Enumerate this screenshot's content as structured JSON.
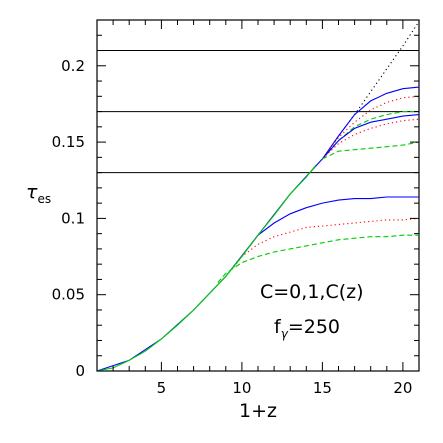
{
  "chart_data": {
    "type": "line",
    "xlabel": "1+z",
    "ylabel": "τ",
    "ylabel_sub": "es",
    "xlim": [
      1,
      21
    ],
    "ylim": [
      0,
      0.23
    ],
    "x_ticks": [
      5,
      10,
      15,
      20
    ],
    "x_tick_labels": [
      "5",
      "10",
      "15",
      "20"
    ],
    "y_ticks": [
      0,
      0.05,
      0.1,
      0.15,
      0.2
    ],
    "y_tick_labels": [
      "0",
      "0.05",
      "0.1",
      "0.15",
      "0.2"
    ],
    "grid": false,
    "annotations": [
      {
        "text": "C=0,1,C(z)"
      },
      {
        "text": "f",
        "sub": "γ",
        "suffix": "=250"
      }
    ],
    "hlines": [
      0.21,
      0.17,
      0.13
    ],
    "series": [
      {
        "style": "dotted",
        "color": "#000000",
        "x": [
          15.0,
          16,
          17,
          18,
          19,
          20,
          21
        ],
        "y": [
          0.139,
          0.154,
          0.168,
          0.183,
          0.198,
          0.213,
          0.229
        ]
      },
      {
        "style": "solid",
        "color": "#0000ff",
        "x": [
          1,
          3,
          5,
          7,
          9,
          11,
          13,
          15,
          16,
          17,
          18,
          19,
          20,
          21
        ],
        "y": [
          0,
          0.007,
          0.021,
          0.04,
          0.062,
          0.089,
          0.116,
          0.139,
          0.154,
          0.168,
          0.177,
          0.182,
          0.185,
          0.186
        ]
      },
      {
        "style": "dotted",
        "color": "#ff0000",
        "x": [
          15.0,
          16,
          17,
          18,
          19,
          20,
          21
        ],
        "y": [
          0.139,
          0.153,
          0.163,
          0.171,
          0.176,
          0.179,
          0.18
        ]
      },
      {
        "style": "dashed",
        "color": "#00cc00",
        "x": [
          15.0,
          16,
          17,
          18,
          19,
          20,
          21
        ],
        "y": [
          0.139,
          0.151,
          0.16,
          0.165,
          0.168,
          0.17,
          0.17
        ]
      },
      {
        "style": "solid",
        "color": "#0000ff",
        "x": [
          15.0,
          16,
          17,
          18,
          19,
          20,
          21
        ],
        "y": [
          0.139,
          0.151,
          0.159,
          0.163,
          0.165,
          0.167,
          0.168
        ]
      },
      {
        "style": "dotted",
        "color": "#ff0000",
        "x": [
          15.0,
          16,
          17,
          18,
          19,
          20,
          21
        ],
        "y": [
          0.139,
          0.149,
          0.155,
          0.159,
          0.162,
          0.164,
          0.165
        ]
      },
      {
        "style": "dashed",
        "color": "#00cc00",
        "x": [
          15.0,
          16,
          17,
          18,
          19,
          20,
          21
        ],
        "y": [
          0.139,
          0.144,
          0.145,
          0.146,
          0.147,
          0.148,
          0.15
        ]
      },
      {
        "style": "solid",
        "color": "#0000ff",
        "x": [
          10.5,
          11,
          12,
          13,
          14,
          15,
          16,
          17,
          18,
          19,
          20,
          21
        ],
        "y": [
          0.082,
          0.089,
          0.097,
          0.103,
          0.107,
          0.11,
          0.112,
          0.113,
          0.113,
          0.114,
          0.114,
          0.114
        ]
      },
      {
        "style": "dotted",
        "color": "#ff0000",
        "x": [
          9.5,
          10,
          11,
          12,
          13,
          14,
          15,
          16,
          17,
          18,
          19,
          20,
          21
        ],
        "y": [
          0.068,
          0.075,
          0.083,
          0.088,
          0.091,
          0.094,
          0.095,
          0.096,
          0.097,
          0.098,
          0.099,
          0.099,
          0.1
        ]
      },
      {
        "style": "dashed",
        "color": "#00cc00",
        "x": [
          8.5,
          9,
          10,
          11,
          12,
          13,
          14,
          15,
          16,
          17,
          18,
          19,
          20,
          21
        ],
        "y": [
          0.058,
          0.064,
          0.071,
          0.075,
          0.078,
          0.08,
          0.082,
          0.084,
          0.086,
          0.087,
          0.088,
          0.088,
          0.089,
          0.089
        ]
      },
      {
        "style": "solid",
        "color": "#00cc00",
        "x": [
          1,
          2,
          3,
          4,
          5,
          6,
          7,
          8,
          9,
          10,
          11,
          12,
          13,
          14,
          14.6
        ],
        "y": [
          0,
          0.002,
          0.007,
          0.013,
          0.021,
          0.03,
          0.04,
          0.051,
          0.062,
          0.075,
          0.089,
          0.102,
          0.116,
          0.127,
          0.135
        ]
      }
    ]
  }
}
